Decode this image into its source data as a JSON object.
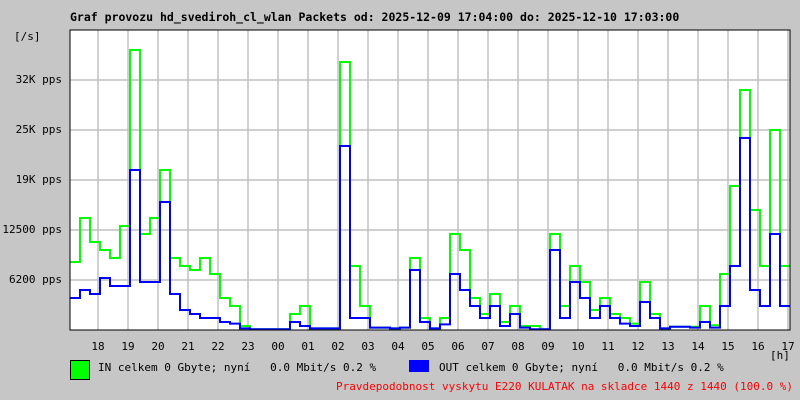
{
  "title": "Graf provozu hd_svediroh_cl_wlan Packets od: 2025-12-09 17:04:00 do: 2025-12-10 17:03:00",
  "chart_data": {
    "type": "line",
    "title": "Graf provozu hd_svediroh_cl_wlan Packets od: 2025-12-09 17:04:00 do: 2025-12-10 17:03:00",
    "ylabel": "[/s]",
    "xlabel": "[h]",
    "x_start": "2025-12-09 17:04:00",
    "step_minutes": 20,
    "ylim": [
      0,
      37500
    ],
    "grid": true,
    "yticks": [
      {
        "value": 6250,
        "label": "6200 pps"
      },
      {
        "value": 12500,
        "label": "12500 pps"
      },
      {
        "value": 18750,
        "label": "19K pps"
      },
      {
        "value": 25000,
        "label": "25K pps"
      },
      {
        "value": 31250,
        "label": "32K pps"
      }
    ],
    "xticks": [
      "18",
      "19",
      "20",
      "21",
      "22",
      "23",
      "00",
      "01",
      "02",
      "03",
      "04",
      "05",
      "06",
      "07",
      "08",
      "09",
      "10",
      "11",
      "12",
      "13",
      "14",
      "15",
      "16",
      "17"
    ],
    "series": [
      {
        "name": "IN",
        "color": "#00ff00",
        "values": [
          8500,
          14000,
          11000,
          10000,
          9000,
          13000,
          35000,
          12000,
          14000,
          20000,
          9000,
          8000,
          7500,
          9000,
          7000,
          4000,
          3000,
          500,
          100,
          100,
          100,
          100,
          2000,
          3000,
          200,
          200,
          200,
          33500,
          8000,
          3000,
          300,
          300,
          200,
          300,
          9000,
          1500,
          200,
          1500,
          12000,
          10000,
          4000,
          2000,
          4500,
          1000,
          3000,
          500,
          500,
          100,
          12000,
          3000,
          8000,
          6000,
          2500,
          4000,
          2000,
          1500,
          800,
          6000,
          2000,
          200,
          400,
          400,
          400,
          3000,
          600,
          7000,
          18000,
          30000,
          15000,
          8000,
          25000,
          8000
        ]
      },
      {
        "name": "OUT",
        "color": "#0000ff",
        "values": [
          4000,
          5000,
          4500,
          6500,
          5500,
          5500,
          20000,
          6000,
          6000,
          16000,
          4500,
          2500,
          2000,
          1500,
          1500,
          1000,
          800,
          200,
          100,
          100,
          100,
          100,
          1000,
          500,
          200,
          200,
          200,
          23000,
          1500,
          1500,
          300,
          300,
          200,
          300,
          7500,
          1000,
          200,
          700,
          7000,
          5000,
          3000,
          1500,
          3000,
          500,
          2000,
          300,
          100,
          100,
          10000,
          1500,
          6000,
          4000,
          1500,
          3000,
          1500,
          800,
          500,
          3500,
          1500,
          200,
          400,
          400,
          300,
          1000,
          300,
          3000,
          8000,
          24000,
          5000,
          3000,
          12000,
          3000
        ]
      }
    ]
  },
  "legend": {
    "in_color": "#00ff00",
    "out_color": "#0000ff",
    "in_text": "IN celkem 0 Gbyte; nyní   0.0 Mbit/s 0.2 %",
    "out_text": "OUT celkem 0 Gbyte; nyní   0.0 Mbit/s 0.2 %"
  },
  "note": "Pravdepodobnost vyskytu E220 KULATAK na skladce 1440 z 1440 (100.0 %)"
}
